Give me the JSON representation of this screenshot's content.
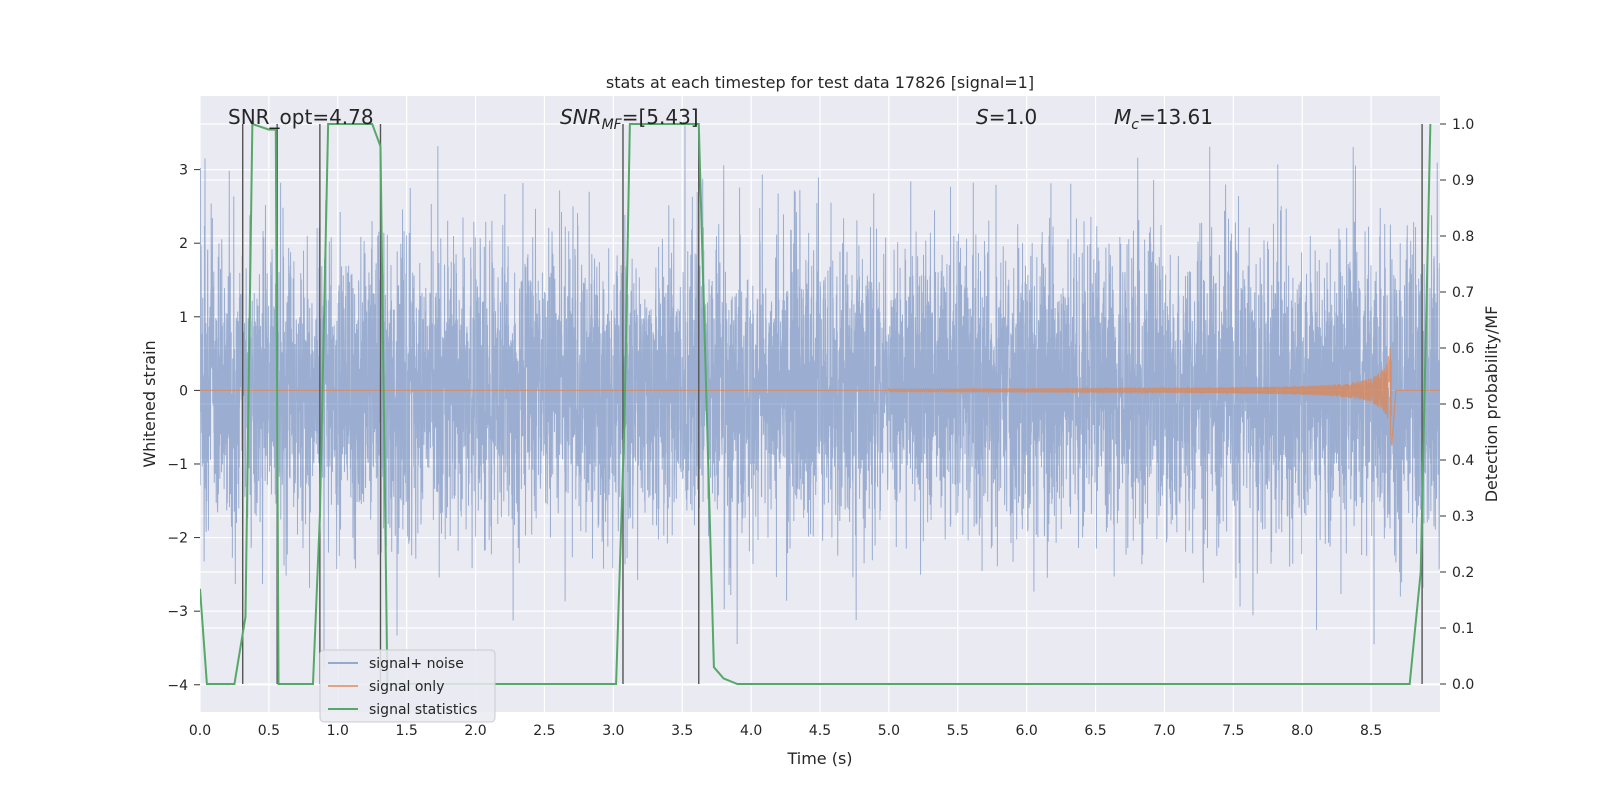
{
  "chart_data": {
    "type": "line",
    "title": "stats at each timestep for test data 17826 [signal=1]",
    "xlabel": "Time (s)",
    "ylabel": "Whitened strain",
    "y2label": "Detection probability/MF",
    "xlim": [
      0,
      9.0
    ],
    "ylim": [
      -4.37,
      4.0
    ],
    "y2lim": [
      -0.05,
      1.05
    ],
    "x_ticks": [
      "0.0",
      "0.5",
      "1.0",
      "1.5",
      "2.0",
      "2.5",
      "3.0",
      "3.5",
      "4.0",
      "4.5",
      "5.0",
      "5.5",
      "6.0",
      "6.5",
      "7.0",
      "7.5",
      "8.0",
      "8.5"
    ],
    "y_ticks": [
      "3",
      "2",
      "1",
      "0",
      "−1",
      "−2",
      "−3",
      "−4"
    ],
    "y2_ticks": [
      "1.0",
      "0.9",
      "0.8",
      "0.7",
      "0.6",
      "0.5",
      "0.4",
      "0.3",
      "0.2",
      "0.1",
      "0.0"
    ],
    "grid": true,
    "legend_position": "bottom-left",
    "colors": {
      "background": "#eaeaf2",
      "noise": "#4c72b0",
      "signal": "#dd8452",
      "statistics": "#55a868",
      "markers": "#555555"
    },
    "annotations": [
      {
        "key": "snr_opt",
        "text": "SNR_opt=4.78"
      },
      {
        "key": "snr_mf",
        "text": "SNR_MF=[5.43]",
        "main": "SNR",
        "sub": "MF",
        "tail": "=[5.43]"
      },
      {
        "key": "s",
        "text": "S=1.0",
        "main": "S",
        "tail": "=1.0"
      },
      {
        "key": "mc",
        "text": "M_c=13.61",
        "main": "M",
        "sub": "c",
        "tail": "=13.61"
      }
    ],
    "series": [
      {
        "name": "signal+ noise",
        "kind": "noise",
        "sample_rate": 800,
        "duration": 9.0,
        "std": 1.0,
        "range": [
          -4.0,
          3.6
        ]
      },
      {
        "name": "signal only",
        "kind": "chirp",
        "peak_time": 8.65,
        "peak_amplitude": 0.85,
        "onset_time": 5.0
      },
      {
        "name": "signal statistics",
        "kind": "probability",
        "x": [
          0.0,
          0.05,
          0.12,
          0.25,
          0.33,
          0.38,
          0.5,
          0.55,
          0.57,
          0.62,
          0.82,
          0.87,
          0.93,
          1.25,
          1.31,
          1.36,
          1.48,
          1.55,
          3.02,
          3.08,
          3.12,
          3.55,
          3.62,
          3.73,
          3.8,
          3.9,
          8.78,
          8.86,
          8.93
        ],
        "y": [
          0.17,
          0.0,
          0.0,
          0.0,
          0.12,
          1.0,
          0.99,
          0.99,
          0.0,
          0.0,
          0.0,
          0.3,
          1.0,
          1.0,
          0.96,
          0.0,
          0.0,
          0.0,
          0.0,
          0.46,
          1.0,
          1.0,
          1.0,
          0.03,
          0.01,
          0.0,
          0.0,
          0.2,
          1.0
        ]
      }
    ],
    "marker_lines": [
      0.31,
      0.56,
      0.87,
      1.31,
      3.07,
      3.62,
      8.87
    ]
  }
}
